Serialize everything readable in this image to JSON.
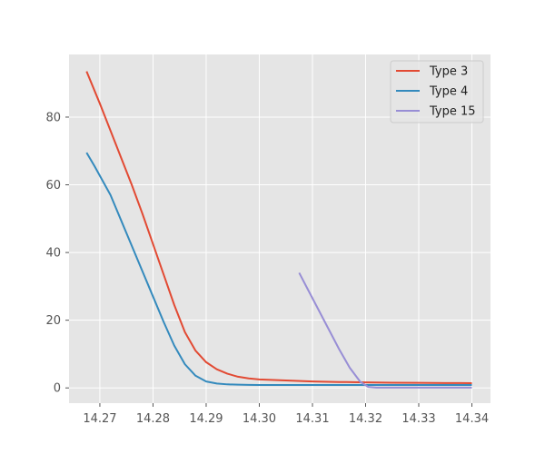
{
  "chart_data": {
    "type": "line",
    "title": "",
    "xlabel": "",
    "ylabel": "",
    "xlim": [
      14.2642,
      14.3435
    ],
    "ylim": [
      -4.5,
      98.5
    ],
    "xticks": [
      14.27,
      14.28,
      14.29,
      14.3,
      14.31,
      14.32,
      14.33,
      14.34
    ],
    "xtick_labels": [
      "14.27",
      "14.28",
      "14.29",
      "14.30",
      "14.31",
      "14.32",
      "14.33",
      "14.34"
    ],
    "yticks": [
      0,
      20,
      40,
      60,
      80
    ],
    "ytick_labels": [
      "0",
      "20",
      "40",
      "60",
      "80"
    ],
    "grid": true,
    "style": "ggplot",
    "legend_position": "top-right",
    "series": [
      {
        "name": "Type 3",
        "color": "#E24A33",
        "x": [
          14.2675,
          14.27,
          14.272,
          14.274,
          14.276,
          14.278,
          14.28,
          14.282,
          14.284,
          14.286,
          14.288,
          14.29,
          14.292,
          14.294,
          14.296,
          14.298,
          14.3,
          14.305,
          14.31,
          14.315,
          14.32,
          14.325,
          14.33,
          14.335,
          14.34
        ],
        "y": [
          93.5,
          84.0,
          76.0,
          68.0,
          60.0,
          51.5,
          42.5,
          33.5,
          24.5,
          16.5,
          11.0,
          7.6,
          5.5,
          4.2,
          3.3,
          2.8,
          2.5,
          2.2,
          1.9,
          1.75,
          1.65,
          1.55,
          1.5,
          1.45,
          1.4
        ]
      },
      {
        "name": "Type 4",
        "color": "#348ABD",
        "x": [
          14.2675,
          14.269,
          14.272,
          14.274,
          14.276,
          14.278,
          14.28,
          14.282,
          14.284,
          14.286,
          14.288,
          14.29,
          14.292,
          14.294,
          14.296,
          14.298,
          14.3,
          14.305,
          14.31,
          14.315,
          14.32,
          14.325,
          14.33,
          14.335,
          14.34
        ],
        "y": [
          69.5,
          65.5,
          57.0,
          49.5,
          42.0,
          34.5,
          27.0,
          19.5,
          12.5,
          7.0,
          3.6,
          1.9,
          1.3,
          1.05,
          0.95,
          0.9,
          0.85,
          0.85,
          0.85,
          0.85,
          0.85,
          0.85,
          0.85,
          0.85,
          0.85
        ]
      },
      {
        "name": "Type 15",
        "color": "#988ED5",
        "x": [
          14.3075,
          14.309,
          14.311,
          14.313,
          14.315,
          14.317,
          14.319,
          14.3205,
          14.322,
          14.325,
          14.33,
          14.335,
          14.34
        ],
        "y": [
          34.0,
          29.5,
          23.5,
          17.5,
          11.5,
          6.0,
          1.8,
          0.3,
          0.1,
          0.1,
          0.1,
          0.1,
          0.1
        ]
      }
    ]
  }
}
